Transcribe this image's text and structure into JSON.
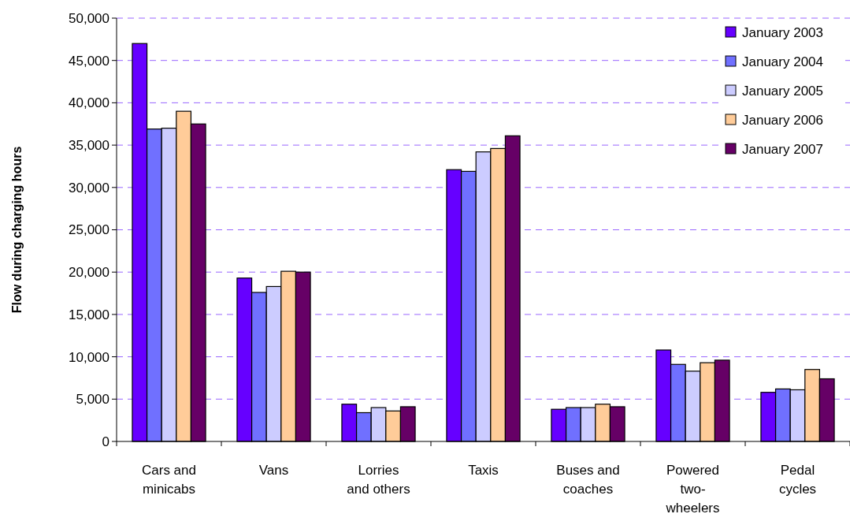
{
  "chart_data": {
    "type": "bar",
    "ylabel": "Flow during charging hours",
    "categories": [
      "Cars and minicabs",
      "Vans",
      "Lorries and others",
      "Taxis",
      "Buses and coaches",
      "Powered two-wheelers",
      "Pedal cycles"
    ],
    "series": [
      {
        "name": "January 2003",
        "color": "#6600ff",
        "values": [
          47000,
          19300,
          4400,
          32100,
          3800,
          10800,
          5800
        ]
      },
      {
        "name": "January 2004",
        "color": "#7070ff",
        "values": [
          36900,
          17600,
          3400,
          31900,
          4000,
          9100,
          6200
        ]
      },
      {
        "name": "January 2005",
        "color": "#ccccff",
        "values": [
          37000,
          18300,
          4000,
          34200,
          4000,
          8300,
          6100
        ]
      },
      {
        "name": "January 2006",
        "color": "#ffcc99",
        "values": [
          39000,
          20100,
          3600,
          34600,
          4400,
          9300,
          8500
        ]
      },
      {
        "name": "January 2007",
        "color": "#660066",
        "values": [
          37500,
          20000,
          4100,
          36100,
          4100,
          9600,
          7400
        ]
      }
    ],
    "ylim": [
      0,
      50000
    ],
    "yticks": [
      {
        "value": 0,
        "label": "0"
      },
      {
        "value": 5000,
        "label": "5,000"
      },
      {
        "value": 10000,
        "label": "10,000"
      },
      {
        "value": 15000,
        "label": "15,000"
      },
      {
        "value": 20000,
        "label": "20,000"
      },
      {
        "value": 25000,
        "label": "25,000"
      },
      {
        "value": 30000,
        "label": "30,000"
      },
      {
        "value": 35000,
        "label": "35,000"
      },
      {
        "value": 40000,
        "label": "40,000"
      },
      {
        "value": 45000,
        "label": "45,000"
      },
      {
        "value": 50000,
        "label": "50,000"
      }
    ],
    "grid": "y",
    "legend": "top right"
  }
}
